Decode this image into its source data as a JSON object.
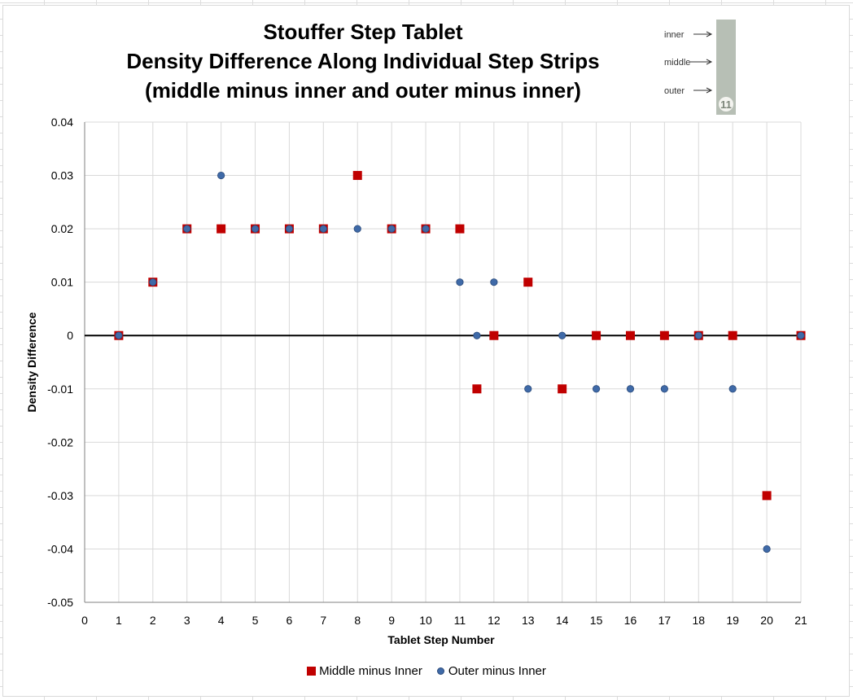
{
  "chart_data": {
    "type": "scatter",
    "title": [
      "Stouffer Step Tablet",
      "Density Difference Along  Individual Step Strips",
      "(middle minus inner and  outer minus inner)"
    ],
    "xlabel": "Tablet Step Number",
    "ylabel": "Density Difference",
    "xlim": [
      0,
      21
    ],
    "ylim": [
      -0.05,
      0.04
    ],
    "x_ticks": [
      0,
      1,
      2,
      3,
      4,
      5,
      6,
      7,
      8,
      9,
      10,
      11,
      12,
      13,
      14,
      15,
      16,
      17,
      18,
      19,
      20,
      21
    ],
    "y_ticks": [
      0.04,
      0.03,
      0.02,
      0.01,
      0,
      -0.01,
      -0.02,
      -0.03,
      -0.04,
      -0.05
    ],
    "grid": true,
    "legend_position": "bottom",
    "series": [
      {
        "name": "Middle minus Inner",
        "marker": "square",
        "color": "#c00000",
        "points": [
          [
            1,
            0
          ],
          [
            2,
            0.01
          ],
          [
            3,
            0.02
          ],
          [
            4,
            0.02
          ],
          [
            5,
            0.02
          ],
          [
            6,
            0.02
          ],
          [
            7,
            0.02
          ],
          [
            8,
            0.03
          ],
          [
            9,
            0.02
          ],
          [
            10,
            0.02
          ],
          [
            11,
            0.02
          ],
          [
            11.5,
            -0.01
          ],
          [
            12,
            0
          ],
          [
            13,
            0.01
          ],
          [
            14,
            -0.01
          ],
          [
            15,
            0
          ],
          [
            16,
            0
          ],
          [
            17,
            0
          ],
          [
            18,
            0
          ],
          [
            19,
            0
          ],
          [
            20,
            -0.03
          ],
          [
            21,
            0
          ]
        ]
      },
      {
        "name": "Outer minus Inner",
        "marker": "circle",
        "color": "#3f6aa8",
        "points": [
          [
            1,
            0
          ],
          [
            2,
            0.01
          ],
          [
            3,
            0.02
          ],
          [
            4,
            0.03
          ],
          [
            5,
            0.02
          ],
          [
            6,
            0.02
          ],
          [
            7,
            0.02
          ],
          [
            8,
            0.02
          ],
          [
            9,
            0.02
          ],
          [
            10,
            0.02
          ],
          [
            11,
            0.01
          ],
          [
            11.5,
            0
          ],
          [
            12,
            0.01
          ],
          [
            13,
            -0.01
          ],
          [
            14,
            0
          ],
          [
            15,
            -0.01
          ],
          [
            16,
            -0.01
          ],
          [
            17,
            -0.01
          ],
          [
            18,
            0
          ],
          [
            19,
            -0.01
          ],
          [
            20,
            -0.04
          ],
          [
            21,
            0
          ]
        ]
      }
    ]
  },
  "inset": {
    "labels": [
      "inner",
      "middle",
      "outer"
    ],
    "badge": "11"
  }
}
